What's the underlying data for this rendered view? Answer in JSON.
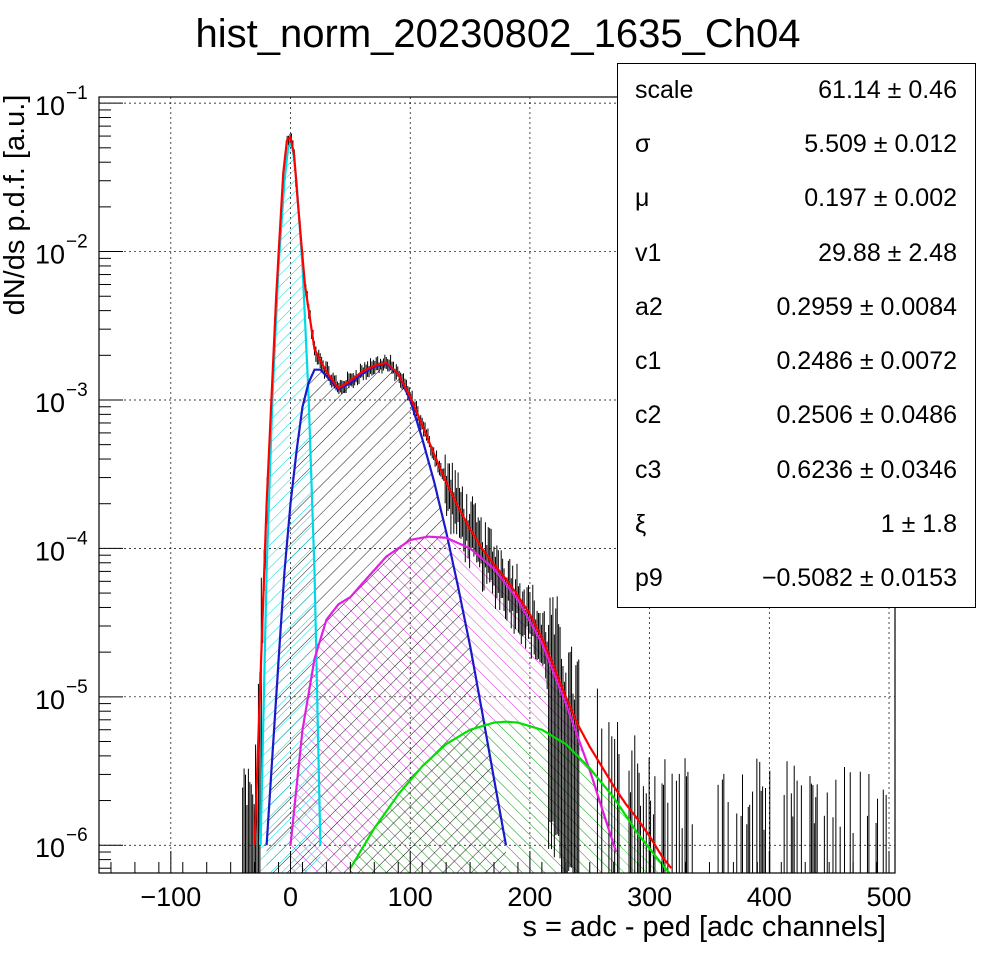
{
  "chart_data": {
    "type": "line",
    "title": "hist_norm_20230802_1635_Ch04",
    "xlabel": "s = adc - ped [adc channels]",
    "ylabel": "dN/ds p.d.f. [a.u.]",
    "xlim": [
      -160,
      505
    ],
    "ylim": [
      6.5e-07,
      0.11
    ],
    "yscale": "log",
    "grid": true,
    "x_ticks": [
      -100,
      0,
      100,
      200,
      300,
      400,
      500
    ],
    "x_tick_labels": [
      "−100",
      "0",
      "100",
      "200",
      "300",
      "400",
      "500"
    ],
    "y_ticks": [
      {
        "value": 1e-06,
        "mantissa": "10",
        "exp": "−6"
      },
      {
        "value": 1e-05,
        "mantissa": "10",
        "exp": "−5"
      },
      {
        "value": 0.0001,
        "mantissa": "10",
        "exp": "−4"
      },
      {
        "value": 0.001,
        "mantissa": "10",
        "exp": "−3"
      },
      {
        "value": 0.01,
        "mantissa": "10",
        "exp": "−2"
      },
      {
        "value": 0.1,
        "mantissa": "10",
        "exp": "−1"
      }
    ],
    "series": [
      {
        "color": "#ff0000",
        "style": "line",
        "x": [
          -30,
          -20,
          -12,
          -6,
          -3,
          0,
          3,
          6,
          12,
          20,
          30,
          40,
          50,
          60,
          70,
          80,
          90,
          100,
          110,
          120,
          130,
          140,
          150,
          160,
          170,
          180,
          190,
          200,
          210,
          220,
          230,
          240,
          250,
          260,
          270,
          280,
          290,
          300,
          310,
          318
        ],
        "y": [
          1e-06,
          0.0002,
          0.005,
          0.034,
          0.056,
          0.059,
          0.045,
          0.022,
          0.006,
          0.0022,
          0.00155,
          0.0012,
          0.00135,
          0.00155,
          0.0017,
          0.00178,
          0.0015,
          0.00105,
          0.00068,
          0.00043,
          0.00028,
          0.00019,
          0.000135,
          0.0001,
          7.8e-05,
          6.2e-05,
          4.8e-05,
          3.6e-05,
          2.5e-05,
          1.6e-05,
          1e-05,
          6.5e-06,
          4.6e-06,
          3.4e-06,
          2.5e-06,
          1.9e-06,
          1.5e-06,
          1.15e-06,
          8.5e-07,
          7e-07
        ]
      },
      {
        "color": "#00d8e8",
        "style": "line",
        "fill": "#00d8e8",
        "x": [
          -25,
          -20,
          -15,
          -10,
          -5,
          -2,
          0,
          2,
          5,
          10,
          15,
          20,
          25
        ],
        "y": [
          1e-06,
          7e-05,
          0.0011,
          0.008,
          0.03,
          0.05,
          0.053,
          0.049,
          0.03,
          0.008,
          0.0011,
          7e-05,
          1e-06
        ]
      },
      {
        "color": "#1a1acc",
        "style": "line",
        "fill": "#000000",
        "x": [
          -20,
          -12,
          -5,
          0,
          5,
          10,
          15,
          20,
          25,
          30,
          40,
          50,
          60,
          70,
          80,
          90,
          100,
          110,
          120,
          130,
          140,
          150,
          160,
          170,
          180
        ],
        "y": [
          1e-06,
          1e-05,
          7e-05,
          0.0002,
          0.00045,
          0.0009,
          0.0013,
          0.0016,
          0.0016,
          0.00145,
          0.00118,
          0.0013,
          0.0015,
          0.00168,
          0.00175,
          0.0015,
          0.001,
          0.00055,
          0.00028,
          0.00013,
          5.5e-05,
          2.2e-05,
          8e-06,
          2.8e-06,
          1e-06
        ]
      },
      {
        "color": "#e020e0",
        "style": "line",
        "fill": "#e020e0",
        "x": [
          0,
          10,
          20,
          30,
          40,
          50,
          60,
          80,
          100,
          115,
          130,
          150,
          170,
          190,
          210,
          230,
          250,
          262,
          272
        ],
        "y": [
          1e-06,
          6e-06,
          1.8e-05,
          3.3e-05,
          4.2e-05,
          4.7e-05,
          5.8e-05,
          8.8e-05,
          0.000114,
          0.00012,
          0.000118,
          0.0001,
          7.3e-05,
          4.5e-05,
          2.3e-05,
          9e-06,
          3.2e-06,
          1.6e-06,
          9e-07
        ]
      },
      {
        "color": "#00e000",
        "style": "line",
        "fill": "#00e000",
        "x": [
          50,
          70,
          90,
          110,
          130,
          150,
          170,
          180,
          190,
          210,
          230,
          250,
          270,
          290,
          310,
          320
        ],
        "y": [
          7e-07,
          1.3e-06,
          2.2e-06,
          3.4e-06,
          4.8e-06,
          6e-06,
          6.7e-06,
          6.8e-06,
          6.7e-06,
          6e-06,
          4.8e-06,
          3.3e-06,
          2.1e-06,
          1.2e-06,
          7.5e-07,
          6e-07
        ]
      }
    ]
  },
  "stats_box": {
    "rows": [
      {
        "name": "scale",
        "value": "61.14 ± 0.46"
      },
      {
        "name": "σ",
        "value": "5.509 ± 0.012"
      },
      {
        "name": "μ",
        "value": "0.197 ± 0.002"
      },
      {
        "name": "v1",
        "value": "29.88 ± 2.48"
      },
      {
        "name": "a2",
        "value": "0.2959 ± 0.0084"
      },
      {
        "name": "c1",
        "value": "0.2486 ± 0.0072"
      },
      {
        "name": "c2",
        "value": "0.2506 ± 0.0486"
      },
      {
        "name": "c3",
        "value": "0.6236 ± 0.0346"
      },
      {
        "name": "ξ",
        "value": "1 ± 1.8"
      },
      {
        "name": "p9",
        "value": "−0.5082 ± 0.0153"
      }
    ]
  }
}
